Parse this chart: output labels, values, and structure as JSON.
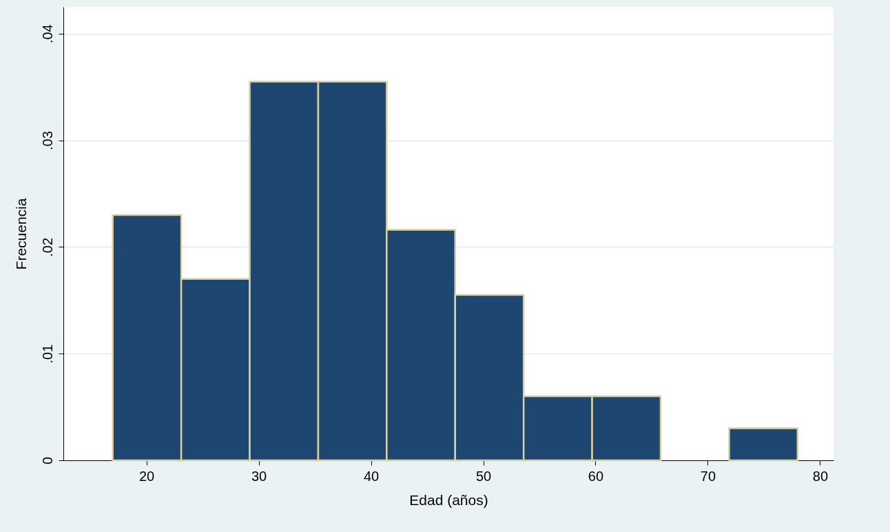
{
  "chart_data": {
    "type": "histogram",
    "xlabel": "Edad (años)",
    "ylabel": "Frecuencia",
    "color": "#1d4770",
    "bins": [
      17,
      23.1,
      29.2,
      35.3,
      41.4,
      47.5,
      53.6,
      59.7,
      65.8,
      71.9,
      78
    ],
    "values": [
      0.023,
      0.017,
      0.0355,
      0.0355,
      0.0216,
      0.0155,
      0.006,
      0.006,
      0,
      0.003
    ],
    "xlim": [
      12.6,
      81.2
    ],
    "xticks": [
      20,
      30,
      40,
      50,
      60,
      70,
      80
    ],
    "ylim": [
      0,
      0.0425
    ],
    "yticks": [
      {
        "value": 0,
        "label": "0"
      },
      {
        "value": 0.01,
        "label": ".01"
      },
      {
        "value": 0.02,
        "label": ".02"
      },
      {
        "value": 0.03,
        "label": ".03"
      },
      {
        "value": 0.04,
        "label": ".04"
      }
    ],
    "grid": "y"
  }
}
